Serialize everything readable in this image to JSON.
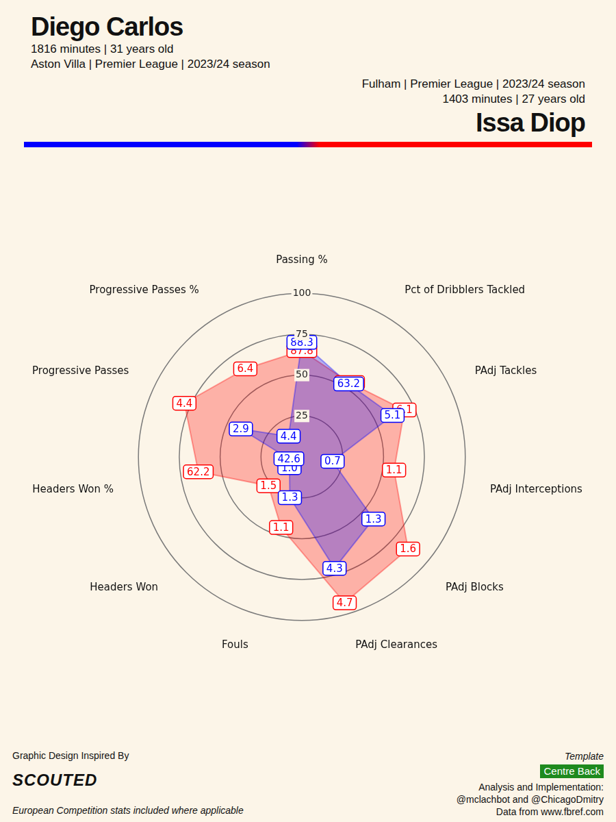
{
  "header": {
    "left_lines": [
      "1816 minutes | 31 years old",
      "Aston Villa | Premier League | 2023/24 season"
    ],
    "right_lines": [
      "Fulham | Premier League | 2023/24 season",
      "1403 minutes | 27 years old"
    ]
  },
  "footer": {
    "design_credit": "Graphic Design Inspired By",
    "brand": "SCOUTED",
    "note": "European Competition stats included where applicable",
    "template_label": "Template",
    "template": "Centre Back",
    "analysis": "Analysis and Implementation:",
    "authors": "@mclachbot and @ChicagoDmitry",
    "source": "Data from www.fbref.com"
  },
  "chart_data": {
    "type": "radar",
    "categories": [
      "Passing %",
      "Pct of Dribblers Tackled",
      "PAdj Tackles",
      "PAdj Interceptions",
      "PAdj Blocks",
      "PAdj Clearances",
      "Fouls",
      "Headers Won",
      "Headers Won %",
      "Progressive Passes",
      "Progressive Passes %"
    ],
    "ylim": [
      0,
      100
    ],
    "yticks": [
      25,
      50,
      75,
      100
    ],
    "grid": true,
    "series": [
      {
        "name": "Diego Carlos",
        "color": "#0000ff",
        "values": [
          70,
          53,
          61,
          19,
          58,
          71,
          26,
          10,
          8,
          41,
          15
        ],
        "raw_values": [
          88.3,
          63.2,
          5.1,
          0.7,
          1.3,
          4.3,
          1.3,
          1.0,
          42.6,
          2.9,
          4.4
        ]
      },
      {
        "name": "Issa Diop",
        "color": "#ff0000",
        "values": [
          65,
          54,
          69,
          57,
          86,
          93,
          45,
          27,
          64,
          79,
          64
        ],
        "raw_values": [
          87.8,
          63.2,
          6.1,
          1.1,
          1.6,
          4.7,
          1.1,
          1.5,
          62.2,
          4.4,
          6.4
        ]
      }
    ]
  }
}
